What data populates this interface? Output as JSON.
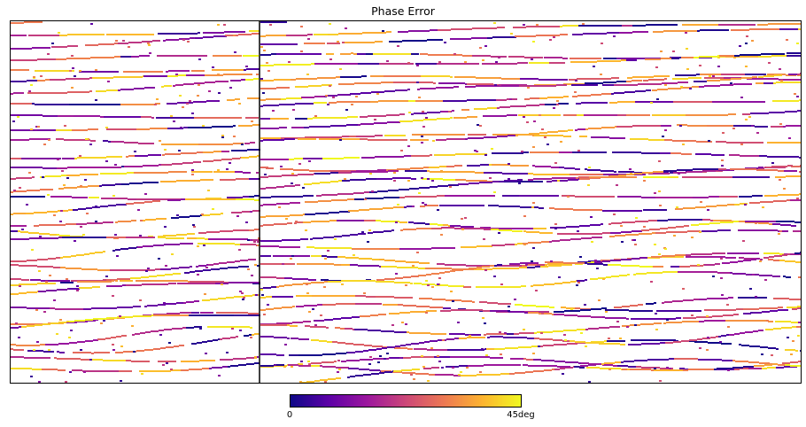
{
  "chart_data": {
    "type": "heatmap",
    "title": "Phase Error",
    "xlabel": "",
    "ylabel": "",
    "colormap": "plasma",
    "colormap_stops": [
      "#0d0887",
      "#5c01a6",
      "#9c179e",
      "#cc4778",
      "#ed7953",
      "#fdb42f",
      "#f0f921"
    ],
    "value_range": [
      0,
      45
    ],
    "unit": "deg",
    "background": "#ffffff",
    "colorbar": {
      "orientation": "horizontal",
      "placement": "bottom",
      "tick_labels": [
        "0",
        "45deg"
      ]
    },
    "panels": [
      {
        "name": "left panel"
      },
      {
        "name": "right panel"
      }
    ],
    "pattern": "thin near-horizontal fragmented stripes of phase error values, wavy and slightly tilted, sparse on white background; stripes more curved toward the bottom and in the right panel"
  }
}
